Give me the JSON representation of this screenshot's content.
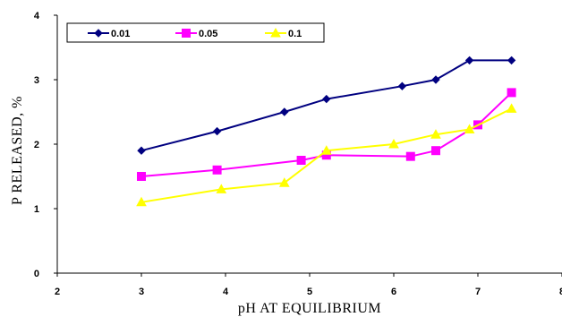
{
  "chart_data": {
    "type": "line",
    "xlabel": "pH AT EQUILIBRIUM",
    "ylabel": "P RELEASED, %",
    "xlim": [
      2,
      8
    ],
    "ylim": [
      0,
      4
    ],
    "xticks": [
      "2",
      "3",
      "4",
      "5",
      "6",
      "7",
      "8"
    ],
    "yticks": [
      "0",
      "1",
      "2",
      "3",
      "4"
    ],
    "grid": false,
    "legend_position": "top-left",
    "series": [
      {
        "name": "0.01",
        "color": "#000080",
        "marker": "diamond",
        "x": [
          3.0,
          3.9,
          4.7,
          5.2,
          6.1,
          6.5,
          6.9,
          7.4
        ],
        "y": [
          1.9,
          2.2,
          2.5,
          2.7,
          2.9,
          3.0,
          3.3,
          3.3
        ]
      },
      {
        "name": "0.05",
        "color": "#ff00ff",
        "marker": "square",
        "x": [
          3.0,
          3.9,
          4.9,
          5.2,
          6.2,
          6.5,
          7.0,
          7.4
        ],
        "y": [
          1.5,
          1.6,
          1.75,
          1.83,
          1.81,
          1.9,
          2.3,
          2.8
        ]
      },
      {
        "name": "0.1",
        "color": "#ffff00",
        "marker": "triangle",
        "x": [
          3.0,
          3.95,
          4.7,
          5.2,
          6.0,
          6.5,
          6.9,
          7.4
        ],
        "y": [
          1.1,
          1.3,
          1.4,
          1.9,
          2.0,
          2.15,
          2.23,
          2.55
        ]
      }
    ]
  }
}
